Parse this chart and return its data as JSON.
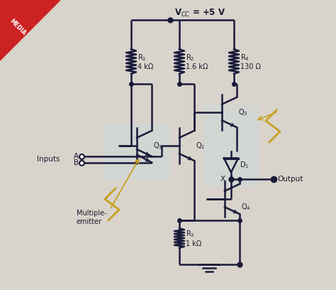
{
  "bg_color": "#d8d4cc",
  "line_color": "#1a1a3a",
  "wire_color": "#1a1a3a",
  "label_color": "#1a1a2e",
  "arrow_color": "#c8a020",
  "highlight1_color": "#c8dce0",
  "highlight2_color": "#c8dce0",
  "vcc_label": "V$_{CC}$ = +5 V",
  "r1_label": "R$_1$\n4 kΩ",
  "r2_label": "R$_2$\n1.6 kΩ",
  "r4_label": "R$_4$\n130 Ω",
  "r3_label": "R$_3$\n1 kΩ",
  "q1_label": "Q$_1$",
  "q2_label": "Q$_2$",
  "q3_label": "Q$_3$",
  "q4_label": "Q$_4$",
  "d1_label": "D$_1$",
  "inputs_label": "Inputs",
  "a_label": "A",
  "b_label": "B",
  "output_label": "Output",
  "x_label": "X",
  "multi_emitter_label": "Multiple-\nemitter",
  "media_label": "MEDIA"
}
